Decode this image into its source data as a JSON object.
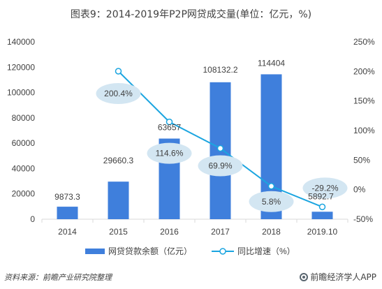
{
  "title": "图表9：2014-2019年P2P网贷成交量(单位：亿元，%)",
  "source": "资料来源：前瞻产业研究院整理",
  "brand": "前瞻经济学人APP",
  "colors": {
    "bar": "#3f7fdc",
    "line": "#1ba5e0",
    "label_bubble": "#d3e6f2",
    "axis": "#d9d9d9",
    "text": "#404040"
  },
  "chart_data": {
    "type": "bar",
    "categories": [
      "2014",
      "2015",
      "2016",
      "2017",
      "2018",
      "2019.10"
    ],
    "series": [
      {
        "name": "网贷贷款余额（亿元）",
        "type": "bar",
        "axis": "left",
        "values": [
          9873.3,
          29660.3,
          63657,
          108132.2,
          114404,
          5892.7
        ],
        "labels": [
          "9873.3",
          "29660.3",
          "63657",
          "108132.2",
          "114404",
          "5892.7"
        ]
      },
      {
        "name": "同比增速（%）",
        "type": "line",
        "axis": "right",
        "values": [
          null,
          200.4,
          114.6,
          69.9,
          5.8,
          -29.2
        ],
        "labels": [
          "",
          "200.4%",
          "114.6%",
          "69.9%",
          "5.8%",
          "-29.2%"
        ]
      }
    ],
    "y_left": {
      "min": 0,
      "max": 140000,
      "ticks": [
        "0",
        "20000",
        "40000",
        "60000",
        "80000",
        "100000",
        "120000",
        "140000"
      ]
    },
    "y_right": {
      "min": -50,
      "max": 250,
      "ticks": [
        "-50%",
        "0%",
        "50%",
        "100%",
        "150%",
        "200%",
        "250%"
      ]
    },
    "legend": {
      "position": "bottom"
    }
  }
}
